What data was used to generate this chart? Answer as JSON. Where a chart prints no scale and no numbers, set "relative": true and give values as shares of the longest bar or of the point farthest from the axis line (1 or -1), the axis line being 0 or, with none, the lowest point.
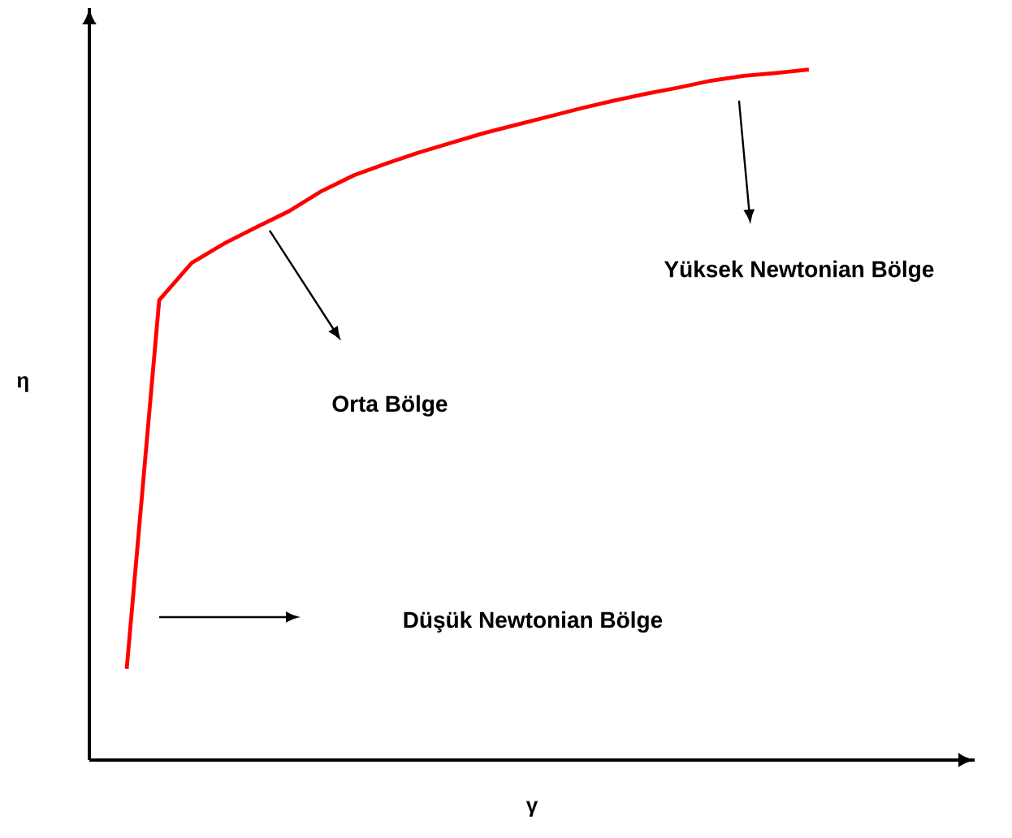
{
  "chart_data": {
    "type": "line",
    "relative": true,
    "xlabel": "γ",
    "ylabel": "η",
    "categories": [
      null,
      null,
      null,
      null,
      null,
      null,
      null,
      null,
      null,
      null,
      null,
      null,
      null,
      null,
      null,
      null,
      null,
      null,
      null,
      null,
      null,
      null
    ],
    "series": [
      {
        "color": "#ff0000",
        "values": [
          0.132,
          0.666,
          0.72,
          0.748,
          0.772,
          0.795,
          0.824,
          0.847,
          0.864,
          0.88,
          0.894,
          0.908,
          0.92,
          0.932,
          0.944,
          0.955,
          0.965,
          0.974,
          0.984,
          0.991,
          0.995,
          1.0
        ]
      }
    ],
    "annotations": [
      "Yüksek Newtonian Bölge",
      "Orta Bölge",
      "Düşük Newtonian Bölge"
    ]
  }
}
